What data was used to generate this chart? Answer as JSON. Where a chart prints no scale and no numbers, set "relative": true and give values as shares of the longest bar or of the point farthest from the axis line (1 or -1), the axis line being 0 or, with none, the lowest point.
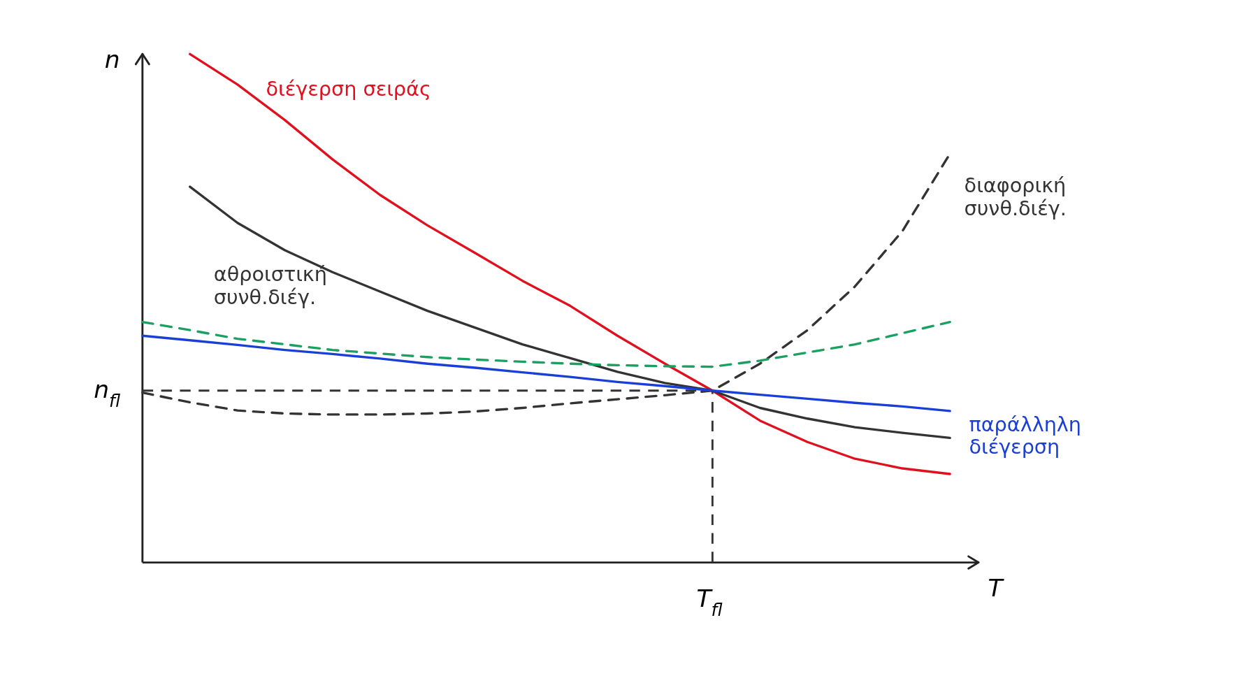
{
  "chart_data": {
    "type": "line",
    "relative": true,
    "xlabel": "T",
    "ylabel": "n",
    "grid": false,
    "marker": "none",
    "categories": [
      null,
      null,
      null,
      null,
      null,
      null,
      null,
      null,
      null,
      null,
      null,
      null,
      null,
      null,
      null,
      null,
      null,
      null
    ],
    "series": [
      {
        "name": "διέγερση σειράς",
        "color": "#e0101e",
        "line_style": "solid",
        "values": [
          null,
          1.0,
          0.94,
          0.87,
          0.793,
          0.723,
          0.663,
          0.609,
          0.554,
          0.505,
          0.446,
          0.391,
          0.338,
          0.279,
          0.237,
          0.204,
          0.185,
          0.174
        ]
      },
      {
        "name": "αθροιστική συνθ.διέγ.",
        "color": "#333333",
        "line_style": "solid",
        "values": [
          null,
          0.739,
          0.668,
          0.614,
          0.571,
          0.533,
          0.495,
          0.462,
          0.429,
          0.402,
          0.375,
          0.353,
          0.338,
          0.304,
          0.283,
          0.266,
          0.255,
          0.245
        ]
      },
      {
        "name": "διαφορική συνθ.διέγ.",
        "color": "#333333",
        "line_style": "dashed",
        "values": [
          0.334,
          0.315,
          0.299,
          0.293,
          0.291,
          0.291,
          0.293,
          0.297,
          0.304,
          0.313,
          0.321,
          0.329,
          0.338,
          0.391,
          0.457,
          0.543,
          0.652,
          0.804
        ]
      },
      {
        "name": "παράλληλη διέγερση",
        "color": "#1a3fd6",
        "line_style": "solid",
        "values": [
          0.446,
          0.437,
          0.428,
          0.418,
          0.41,
          0.401,
          0.391,
          0.383,
          0.374,
          0.365,
          0.355,
          0.347,
          0.338,
          0.33,
          0.322,
          0.314,
          0.307,
          0.298
        ]
      },
      {
        "color": "#1aa060",
        "line_style": "dashed",
        "values": [
          0.473,
          0.457,
          0.44,
          0.429,
          0.418,
          0.411,
          0.404,
          0.399,
          0.395,
          0.391,
          0.388,
          0.386,
          0.385,
          0.397,
          0.413,
          0.429,
          0.451,
          0.473
        ]
      }
    ],
    "ref_lines": [
      {
        "axis": "y",
        "value": 0.338,
        "label": "n$_{fl}$",
        "line_style": "dashed",
        "color": "#333333"
      },
      {
        "axis": "x",
        "label": "T$_{fl}$",
        "line_style": "dashed",
        "color": "#333333"
      }
    ]
  }
}
